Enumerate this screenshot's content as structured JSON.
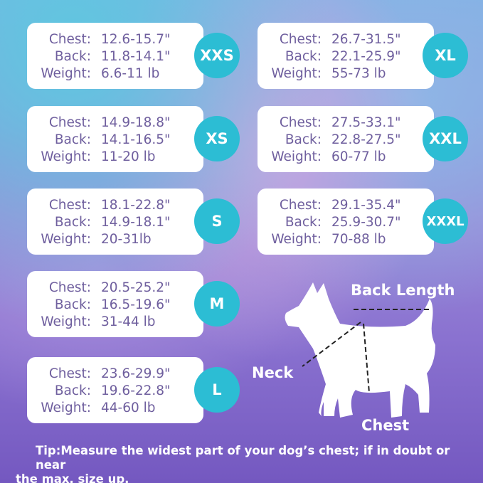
{
  "labels": {
    "chest": "Chest:",
    "back": "Back:",
    "weight": "Weight:"
  },
  "sizes": [
    {
      "size": "XXS",
      "chest": "12.6-15.7\"",
      "back": "11.8-14.1\"",
      "weight": "6.6-11 lb"
    },
    {
      "size": "XS",
      "chest": "14.9-18.8\"",
      "back": "14.1-16.5\"",
      "weight": "11-20 lb"
    },
    {
      "size": "S",
      "chest": "18.1-22.8\"",
      "back": "14.9-18.1\"",
      "weight": "20-31lb"
    },
    {
      "size": "M",
      "chest": "20.5-25.2\"",
      "back": "16.5-19.6\"",
      "weight": "31-44 lb"
    },
    {
      "size": "L",
      "chest": "23.6-29.9\"",
      "back": "19.6-22.8\"",
      "weight": "44-60 lb"
    },
    {
      "size": "XL",
      "chest": "26.7-31.5\"",
      "back": "22.1-25.9\"",
      "weight": "55-73 lb"
    },
    {
      "size": "XXL",
      "chest": "27.5-33.1\"",
      "back": "22.8-27.5\"",
      "weight": "60-77 lb"
    },
    {
      "size": "XXXL",
      "chest": "29.1-35.4\"",
      "back": "25.9-30.7\"",
      "weight": "70-88 lb"
    }
  ],
  "diagram": {
    "back_length": "Back Length",
    "neck": "Neck",
    "chest": "Chest"
  },
  "tip": {
    "line1": "Tip:Measure the widest part of your dog’s chest; if in doubt or near",
    "line2": "the max, size up."
  },
  "colors": {
    "badge": "#2cbdd4",
    "text": "#6f5f9e"
  }
}
